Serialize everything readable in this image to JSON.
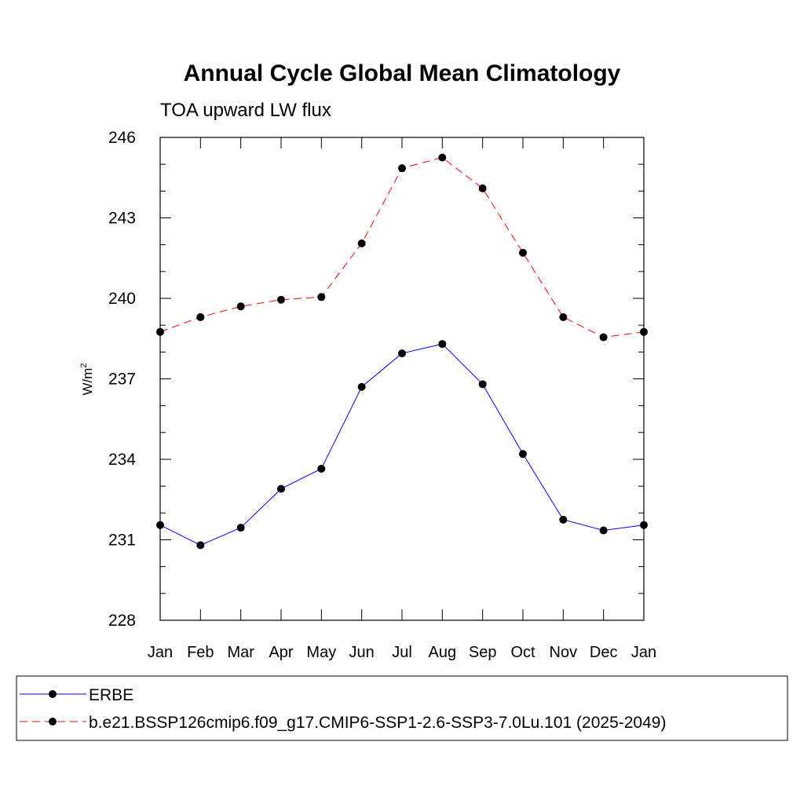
{
  "chart_data": {
    "type": "line",
    "title": "Annual Cycle Global Mean Climatology",
    "subtitle": "TOA upward LW flux",
    "ylabel_main": "W/m",
    "ylabel_sup": "2",
    "categories": [
      "Jan",
      "Feb",
      "Mar",
      "Apr",
      "May",
      "Jun",
      "Jul",
      "Aug",
      "Sep",
      "Oct",
      "Nov",
      "Dec",
      "Jan"
    ],
    "ylim": [
      228,
      246
    ],
    "yticks": [
      "228",
      "231",
      "234",
      "237",
      "240",
      "243",
      "246"
    ],
    "grid": false,
    "legend_position": "bottom",
    "series": [
      {
        "name": "ERBE",
        "color": "#0000ff",
        "dash": "solid",
        "values": [
          231.55,
          230.8,
          231.45,
          232.9,
          233.65,
          236.7,
          237.95,
          238.3,
          236.8,
          234.2,
          231.75,
          231.35,
          231.55
        ]
      },
      {
        "name": "b.e21.BSSP126cmip6.f09_g17.CMIP6-SSP1-2.6-SSP3-7.0Lu.101 (2025-2049)",
        "color": "#ff0000",
        "dash": "dashed",
        "values": [
          238.75,
          239.3,
          239.7,
          239.95,
          240.05,
          242.05,
          244.85,
          245.25,
          244.1,
          241.7,
          239.3,
          238.55,
          238.75
        ]
      }
    ]
  }
}
